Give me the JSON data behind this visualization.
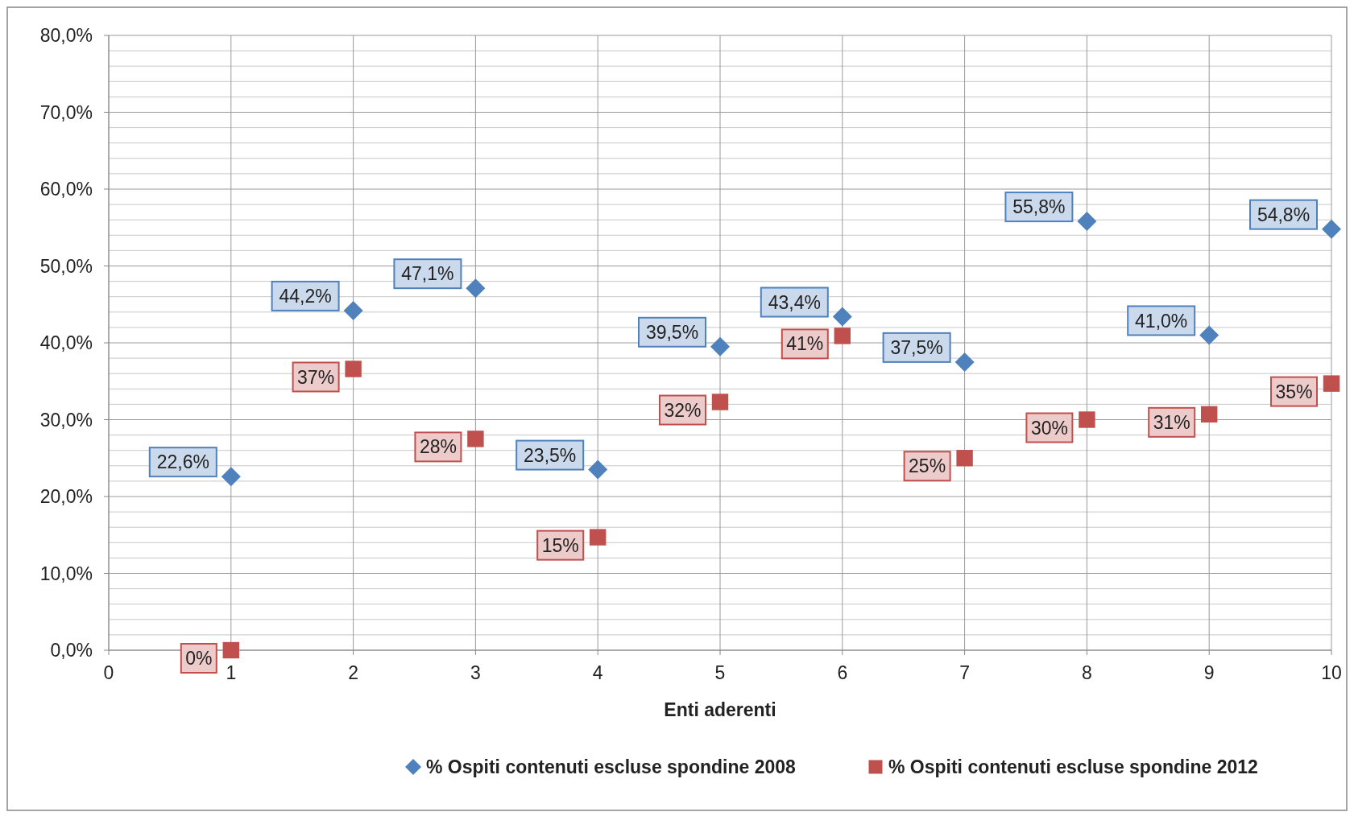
{
  "chart_data": {
    "type": "scatter",
    "xlabel": "Enti aderenti",
    "x": [
      1,
      2,
      3,
      4,
      5,
      6,
      7,
      8,
      9,
      10
    ],
    "series": [
      {
        "name": "% Ospiti contenuti escluse spondine 2008",
        "color": "#4f81bd",
        "marker": "diamond",
        "values": [
          22.6,
          44.2,
          47.1,
          23.5,
          39.5,
          43.4,
          37.5,
          55.8,
          41.0,
          54.8
        ],
        "value_labels": [
          "22,6%",
          "44,2%",
          "47,1%",
          "23,5%",
          "39,5%",
          "43,4%",
          "37,5%",
          "55,8%",
          "41,0%",
          "54,8%"
        ]
      },
      {
        "name": "% Ospiti contenuti escluse spondine 2012",
        "color": "#c0504d",
        "marker": "square",
        "values": [
          0,
          36.6,
          27.5,
          14.7,
          32.3,
          40.9,
          25.0,
          30.0,
          30.7,
          34.7
        ],
        "value_labels": [
          "0%",
          "37%",
          "28%",
          "15%",
          "32%",
          "41%",
          "25%",
          "30%",
          "31%",
          "35%"
        ]
      }
    ],
    "xlim": [
      0,
      10
    ],
    "xticks": [
      0,
      1,
      2,
      3,
      4,
      5,
      6,
      7,
      8,
      9,
      10
    ],
    "ylim": [
      0,
      80
    ],
    "yticks": [
      {
        "value": 0,
        "label": "0,0%"
      },
      {
        "value": 2,
        "label": null
      },
      {
        "value": 4,
        "label": null
      },
      {
        "value": 6,
        "label": null
      },
      {
        "value": 8,
        "label": null
      },
      {
        "value": 10,
        "label": "10,0%"
      },
      {
        "value": 12,
        "label": null
      },
      {
        "value": 14,
        "label": null
      },
      {
        "value": 16,
        "label": null
      },
      {
        "value": 18,
        "label": null
      },
      {
        "value": 20,
        "label": "20,0%"
      },
      {
        "value": 22,
        "label": null
      },
      {
        "value": 24,
        "label": null
      },
      {
        "value": 26,
        "label": null
      },
      {
        "value": 28,
        "label": null
      },
      {
        "value": 30,
        "label": "30,0%"
      },
      {
        "value": 32,
        "label": null
      },
      {
        "value": 34,
        "label": null
      },
      {
        "value": 36,
        "label": null
      },
      {
        "value": 38,
        "label": null
      },
      {
        "value": 40,
        "label": "40,0%"
      },
      {
        "value": 42,
        "label": null
      },
      {
        "value": 44,
        "label": null
      },
      {
        "value": 46,
        "label": null
      },
      {
        "value": 48,
        "label": null
      },
      {
        "value": 50,
        "label": "50,0%"
      },
      {
        "value": 52,
        "label": null
      },
      {
        "value": 54,
        "label": null
      },
      {
        "value": 56,
        "label": null
      },
      {
        "value": 58,
        "label": null
      },
      {
        "value": 60,
        "label": "60,0%"
      },
      {
        "value": 62,
        "label": null
      },
      {
        "value": 64,
        "label": null
      },
      {
        "value": 66,
        "label": null
      },
      {
        "value": 68,
        "label": null
      },
      {
        "value": 70,
        "label": "70,0%"
      },
      {
        "value": 72,
        "label": null
      },
      {
        "value": 74,
        "label": null
      },
      {
        "value": 76,
        "label": null
      },
      {
        "value": 78,
        "label": null
      },
      {
        "value": 80,
        "label": "80,0%"
      }
    ],
    "grid": true,
    "legend": "bottom"
  }
}
